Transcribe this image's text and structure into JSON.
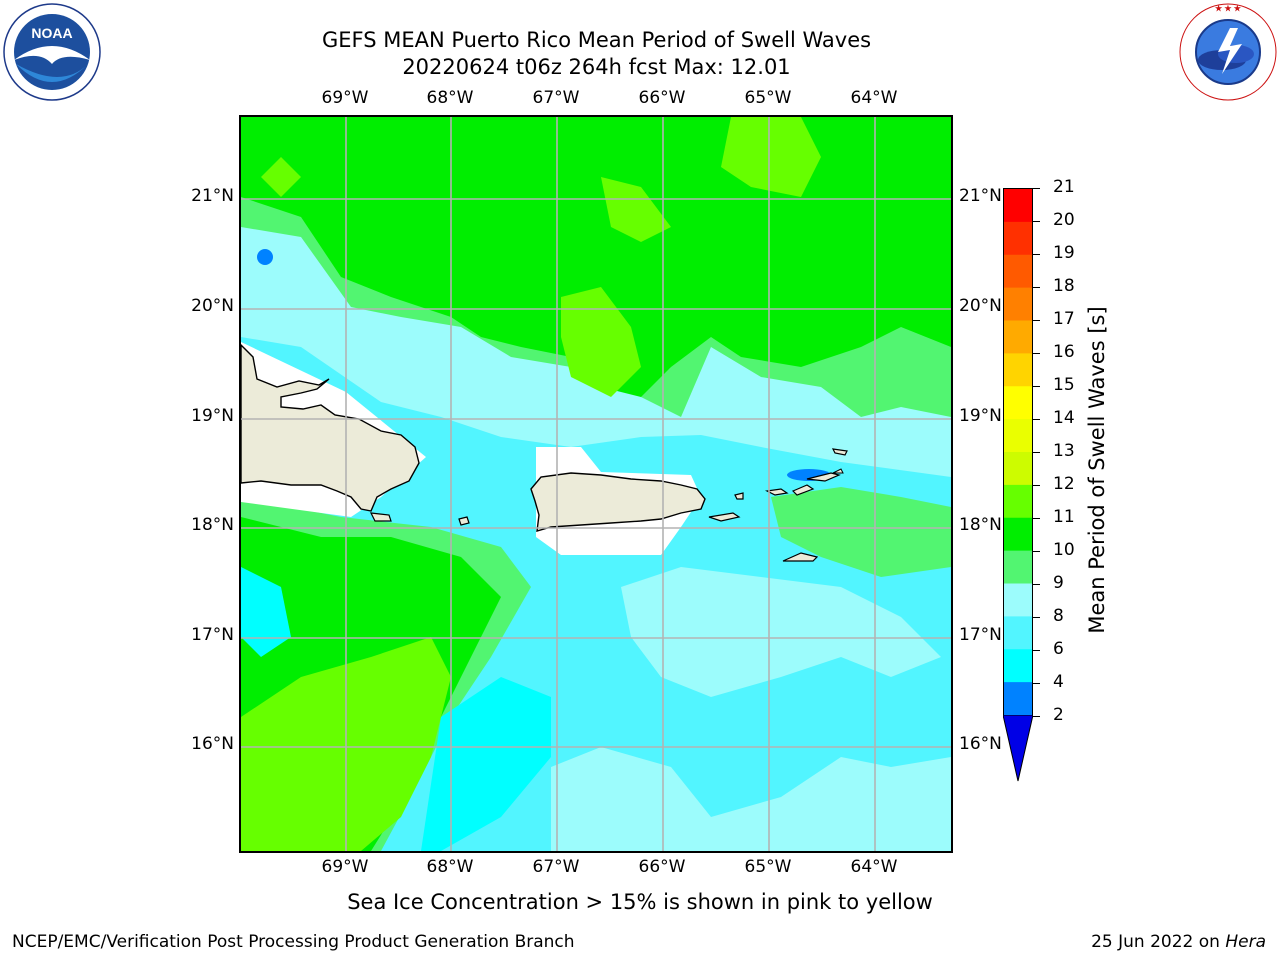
{
  "title": {
    "line1": "GEFS MEAN Puerto Rico Mean Period of Swell Waves",
    "line2": "20220624 t06z 264h fcst   Max: 12.01"
  },
  "lon_labels": [
    "69°W",
    "68°W",
    "67°W",
    "66°W",
    "65°W",
    "64°W"
  ],
  "lat_labels": [
    "21°N",
    "20°N",
    "19°N",
    "18°N",
    "17°N",
    "16°N"
  ],
  "colorbar": {
    "label": "Mean Period of Swell Waves [s]",
    "ticks": [
      "21",
      "20",
      "19",
      "18",
      "17",
      "16",
      "15",
      "14",
      "13",
      "12",
      "11",
      "10",
      "9",
      "8",
      "6",
      "4",
      "2"
    ],
    "colors": [
      "#ff0000",
      "#ff3000",
      "#ff5a00",
      "#ff8000",
      "#ffaa00",
      "#ffd400",
      "#ffff00",
      "#eaff00",
      "#cdfc00",
      "#66ff00",
      "#00ee00",
      "#52f571",
      "#9cfcfc",
      "#52f5ff",
      "#00ffff",
      "#0082ff",
      "#0000e6"
    ]
  },
  "map": {
    "colors": {
      "land": "#ecebd9",
      "green_11": "#00ee00",
      "green_12": "#66ff00",
      "mint_10": "#52f571",
      "lightcyan_9": "#9cfcfc",
      "cyan_8": "#52f5ff",
      "cyan_6": "#00ffff",
      "blue_4": "#0082ff",
      "grid": "#b3b3b3"
    }
  },
  "caption": "Sea Ice Concentration > 15% is shown in pink to yellow",
  "footer": {
    "left": "NCEP/EMC/Verification Post Processing Product Generation Branch",
    "right_prefix": "25 Jun 2022 on ",
    "right_host": "Hera"
  },
  "logos": {
    "noaa_text": "NOAA",
    "noaa_ring": "NATIONAL OCEANIC AND ATMOSPHERIC ADMINISTRATION · U.S. DEPARTMENT OF COMMERCE",
    "nws_ring": "NATIONAL WEATHER SERVICE"
  }
}
